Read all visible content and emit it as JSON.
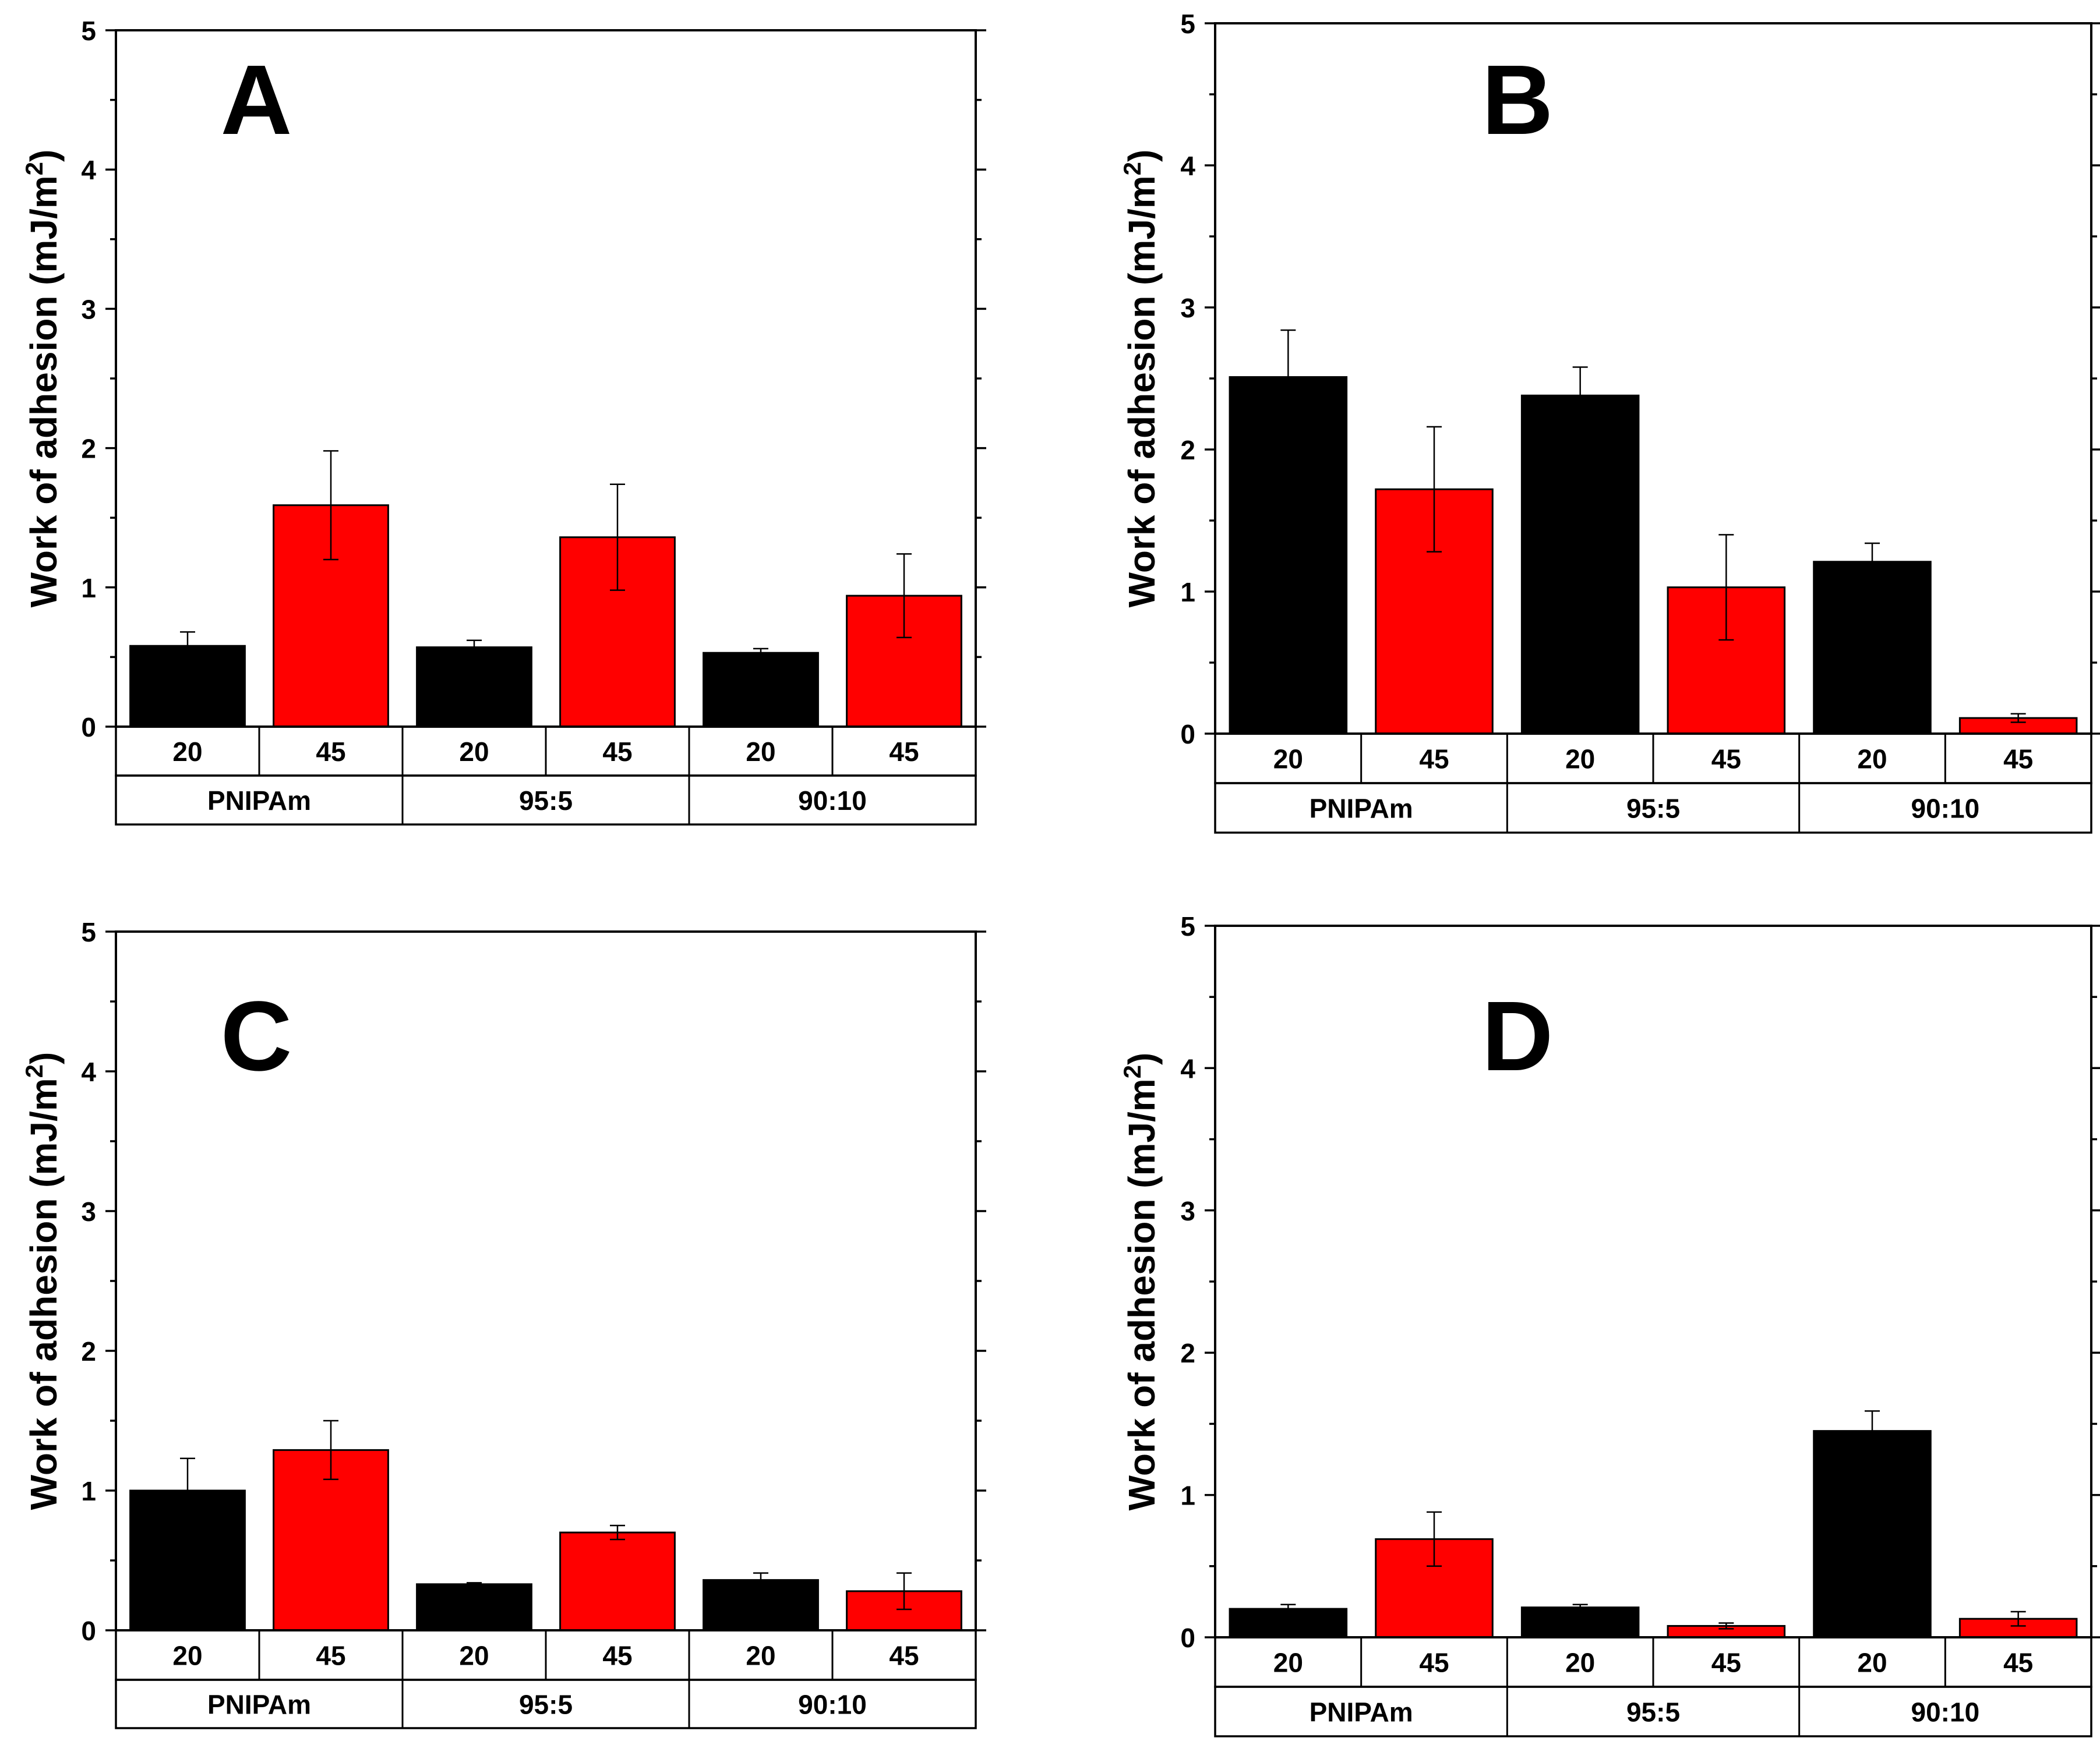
{
  "colors": {
    "black_bar": "#000000",
    "red_bar": "#ff0000",
    "axis": "#000000",
    "background": "#ffffff"
  },
  "chart_data": [
    {
      "panel": "A",
      "type": "bar",
      "ylabel_main": "Work of adhesion (mJ/m",
      "ylabel_sup": "2",
      "ylabel_close": ")",
      "ylim": [
        0,
        5
      ],
      "yticks": [
        "0",
        "1",
        "2",
        "3",
        "4",
        "5"
      ],
      "groups": [
        "PNIPAm",
        "95:5",
        "90:10"
      ],
      "categories": [
        "20",
        "45",
        "20",
        "45",
        "20",
        "45"
      ],
      "bar_colors": [
        "black",
        "red",
        "black",
        "red",
        "black",
        "red"
      ],
      "values": [
        0.58,
        1.59,
        0.57,
        1.36,
        0.53,
        0.94
      ],
      "errors": [
        0.1,
        0.39,
        0.05,
        0.38,
        0.03,
        0.3
      ]
    },
    {
      "panel": "B",
      "type": "bar",
      "ylabel_main": "Work of adhesion (mJ/m",
      "ylabel_sup": "2",
      "ylabel_close": ")",
      "ylim": [
        0,
        5
      ],
      "yticks": [
        "0",
        "1",
        "2",
        "3",
        "4",
        "5"
      ],
      "groups": [
        "PNIPAm",
        "95:5",
        "90:10"
      ],
      "categories": [
        "20",
        "45",
        "20",
        "45",
        "20",
        "45"
      ],
      "bar_colors": [
        "black",
        "red",
        "black",
        "red",
        "black",
        "red"
      ],
      "values": [
        2.51,
        1.72,
        2.38,
        1.03,
        1.21,
        0.11
      ],
      "errors": [
        0.33,
        0.44,
        0.2,
        0.37,
        0.13,
        0.03
      ]
    },
    {
      "panel": "C",
      "type": "bar",
      "ylabel_main": "Work of adhesion (mJ/m",
      "ylabel_sup": "2",
      "ylabel_close": ")",
      "ylim": [
        0,
        5
      ],
      "yticks": [
        "0",
        "1",
        "2",
        "3",
        "4",
        "5"
      ],
      "groups": [
        "PNIPAm",
        "95:5",
        "90:10"
      ],
      "categories": [
        "20",
        "45",
        "20",
        "45",
        "20",
        "45"
      ],
      "bar_colors": [
        "black",
        "red",
        "black",
        "red",
        "black",
        "red"
      ],
      "values": [
        1.0,
        1.29,
        0.33,
        0.7,
        0.36,
        0.28
      ],
      "errors": [
        0.23,
        0.21,
        0.01,
        0.05,
        0.05,
        0.13
      ]
    },
    {
      "panel": "D",
      "type": "bar",
      "ylabel_main": "Work of adhesion (mJ/m",
      "ylabel_sup": "2",
      "ylabel_close": ")",
      "ylim": [
        0,
        5
      ],
      "yticks": [
        "0",
        "1",
        "2",
        "3",
        "4",
        "5"
      ],
      "groups": [
        "PNIPAm",
        "95:5",
        "90:10"
      ],
      "categories": [
        "20",
        "45",
        "20",
        "45",
        "20",
        "45"
      ],
      "bar_colors": [
        "black",
        "red",
        "black",
        "red",
        "black",
        "red"
      ],
      "values": [
        0.2,
        0.69,
        0.21,
        0.08,
        1.45,
        0.13
      ],
      "errors": [
        0.03,
        0.19,
        0.02,
        0.02,
        0.14,
        0.05
      ]
    }
  ]
}
